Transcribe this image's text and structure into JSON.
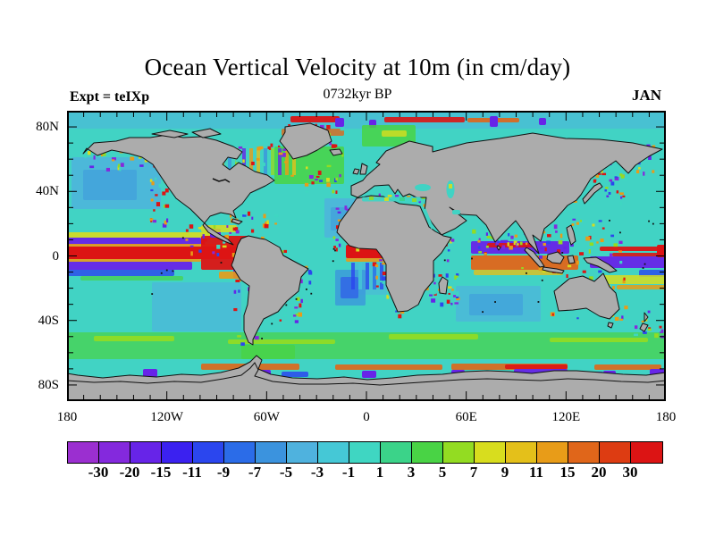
{
  "header": {
    "title": "Ocean Vertical Velocity at 10m (in cm/day)",
    "subtitle": "0732kyr BP",
    "experiment_label": "Expt = teIXp",
    "month_label": "JAN"
  },
  "map": {
    "land_color": "#acacac",
    "coastline_color": "#111111",
    "ocean_base_color": "#41d3c4",
    "x_axis": {
      "ticks": [
        {
          "label": "180",
          "lon": -180
        },
        {
          "label": "120W",
          "lon": -120
        },
        {
          "label": "60W",
          "lon": -60
        },
        {
          "label": "0",
          "lon": 0
        },
        {
          "label": "60E",
          "lon": 60
        },
        {
          "label": "120E",
          "lon": 120
        },
        {
          "label": "180",
          "lon": 180
        }
      ],
      "minor_tick_interval_deg": 10
    },
    "y_axis": {
      "ticks": [
        {
          "label": "80N",
          "lat": 80
        },
        {
          "label": "40N",
          "lat": 40
        },
        {
          "label": "0",
          "lat": 0
        },
        {
          "label": "40S",
          "lat": -40
        },
        {
          "label": "80S",
          "lat": -80
        }
      ],
      "minor_tick_interval_deg": 10
    }
  },
  "colorbar": {
    "boundary_labels": [
      "-30",
      "-20",
      "-15",
      "-11",
      "-9",
      "-7",
      "-5",
      "-3",
      "-1",
      "1",
      "3",
      "5",
      "7",
      "9",
      "11",
      "15",
      "20",
      "30"
    ],
    "colors": [
      "#9b2fd0",
      "#8429dd",
      "#6724e8",
      "#3b21f0",
      "#2b46ee",
      "#2b6ce8",
      "#3b93de",
      "#4fb2de",
      "#45c8d6",
      "#3fd6c2",
      "#3bd389",
      "#49d345",
      "#93dc22",
      "#d8dd1e",
      "#e4c01a",
      "#e89c18",
      "#e0661a",
      "#dd3c12",
      "#dc1414"
    ]
  },
  "chart_data": {
    "type": "heatmap",
    "title": "Ocean Vertical Velocity at 10m (in cm/day)",
    "subtitle": "0732kyr BP",
    "experiment": "teIXp",
    "month": "JAN",
    "units": "cm/day",
    "projection": "equirectangular world map",
    "x_axis": {
      "range_deg": [
        -180,
        180
      ],
      "labeled_ticks": [
        "180",
        "120W",
        "60W",
        "0",
        "60E",
        "120E",
        "180"
      ],
      "minor_tick_deg": 10
    },
    "y_axis": {
      "range_deg": [
        -90,
        90
      ],
      "labeled_ticks": [
        "80N",
        "40N",
        "0",
        "40S",
        "80S"
      ],
      "minor_tick_deg": 10
    },
    "colorbar": {
      "boundaries": [
        -30,
        -20,
        -15,
        -11,
        -9,
        -7,
        -5,
        -3,
        -1,
        1,
        3,
        5,
        7,
        9,
        11,
        15,
        20,
        30
      ],
      "colors": [
        "#9b2fd0",
        "#8429dd",
        "#6724e8",
        "#3b21f0",
        "#2b46ee",
        "#2b6ce8",
        "#3b93de",
        "#4fb2de",
        "#45c8d6",
        "#3fd6c2",
        "#3bd389",
        "#49d345",
        "#93dc22",
        "#d8dd1e",
        "#e4c01a",
        "#e89c18",
        "#e0661a",
        "#dd3c12",
        "#dc1414"
      ],
      "open_ended": true
    },
    "land_color": "#acacac",
    "notable_features": [
      "strong red upwelling band (>30 cm/day) along the equatorial Pacific and Atlantic",
      "purple/blue downwelling bands flanking the equatorial red band",
      "purple downwelling band with an orange-red band just south of it in the equatorial Indian Ocean and western Pacific",
      "green / yellow-green upwelling band across the Southern Ocean near 50-60S",
      "orange-red band with purple-blue coastal blobs along the Antarctic margin",
      "multicolored (red/yellow/purple/blue) coastal speckle along all continental margins",
      "background open ocean mostly cyan, i.e. weak vertical velocity (-1 to 3 cm/day)",
      "light-blue downwelling patches in the subtropical gyres"
    ]
  }
}
